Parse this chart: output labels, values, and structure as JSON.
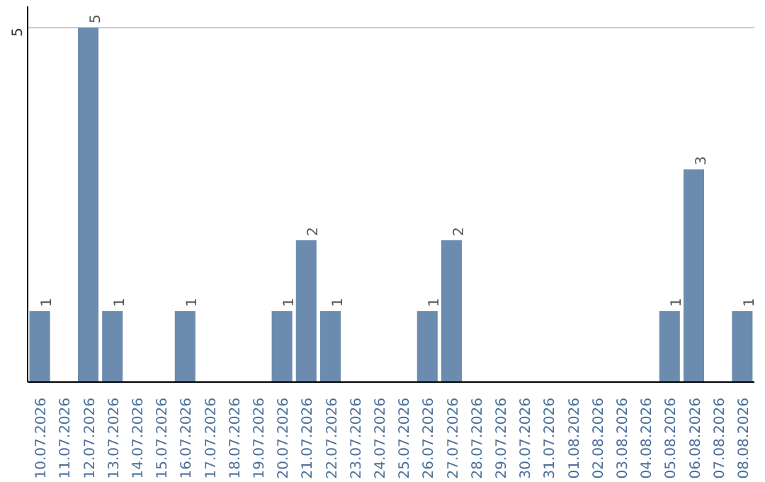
{
  "chart_data": {
    "type": "bar",
    "categories": [
      "10.07.2026",
      "11.07.2026",
      "12.07.2026",
      "13.07.2026",
      "14.07.2026",
      "15.07.2026",
      "16.07.2026",
      "17.07.2026",
      "18.07.2026",
      "19.07.2026",
      "20.07.2026",
      "21.07.2026",
      "22.07.2026",
      "23.07.2026",
      "24.07.2026",
      "25.07.2026",
      "26.07.2026",
      "27.07.2026",
      "28.07.2026",
      "29.07.2026",
      "30.07.2026",
      "31.07.2026",
      "01.08.2026",
      "02.08.2026",
      "03.08.2026",
      "04.08.2026",
      "05.08.2026",
      "06.08.2026",
      "07.08.2026",
      "08.08.2026"
    ],
    "values": [
      1,
      0,
      5,
      1,
      0,
      0,
      1,
      0,
      0,
      0,
      1,
      2,
      1,
      0,
      0,
      0,
      1,
      2,
      0,
      0,
      0,
      0,
      0,
      0,
      0,
      0,
      1,
      3,
      0,
      1
    ],
    "value_labels": [
      "1",
      null,
      "5",
      "1",
      null,
      null,
      "1",
      null,
      null,
      null,
      "1",
      "2",
      "1",
      null,
      null,
      null,
      "1",
      "2",
      null,
      null,
      null,
      null,
      null,
      null,
      null,
      null,
      "1",
      "3",
      null,
      "1"
    ],
    "color": "#6b8cae",
    "ylim": [
      0,
      5.3
    ],
    "yticks": [
      5
    ],
    "grid": "y"
  }
}
